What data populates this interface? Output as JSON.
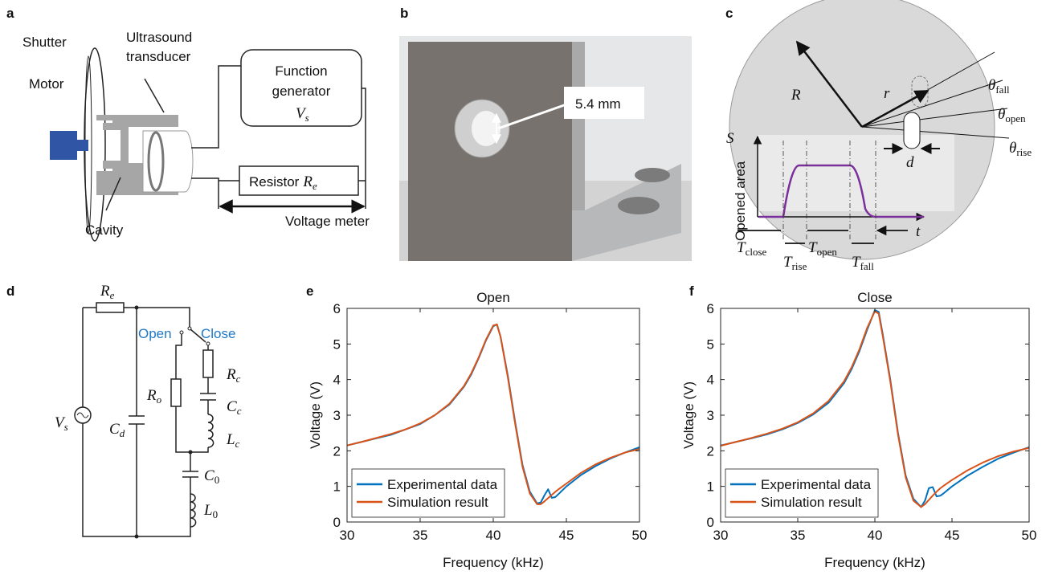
{
  "panels": {
    "a": {
      "label": "a",
      "shutter": "Shutter",
      "motor": "Motor",
      "transducer": [
        "Ultrasound",
        "transducer"
      ],
      "function_generator": [
        "Function",
        "generator"
      ],
      "vs": {
        "symbol": "V",
        "sub": "s"
      },
      "resistor": {
        "text": "Resistor",
        "symbol": "R",
        "sub": "e"
      },
      "voltage_meter": "Voltage meter",
      "cavity": "Cavity"
    },
    "b": {
      "label": "b",
      "dimension": "5.4 mm"
    },
    "c": {
      "label": "c",
      "R": "R",
      "r": "r",
      "d": "d",
      "theta_fall": {
        "symbol": "θ",
        "sub": "fall"
      },
      "theta_open": {
        "symbol": "θ",
        "sub": "open"
      },
      "theta_rise": {
        "symbol": "θ",
        "sub": "rise"
      },
      "s": "S",
      "y_label": "Opened area",
      "t": "t",
      "t_close": {
        "symbol": "T",
        "sub": "close"
      },
      "t_rise": {
        "symbol": "T",
        "sub": "rise"
      },
      "t_open": {
        "symbol": "T",
        "sub": "open"
      },
      "t_fall": {
        "symbol": "T",
        "sub": "fall"
      }
    },
    "d": {
      "label": "d",
      "re": {
        "symbol": "R",
        "sub": "e"
      },
      "open": "Open",
      "close": "Close",
      "vs": {
        "symbol": "V",
        "sub": "s"
      },
      "cd": {
        "symbol": "C",
        "sub": "d"
      },
      "ro": {
        "symbol": "R",
        "sub": "o"
      },
      "rc": {
        "symbol": "R",
        "sub": "c"
      },
      "cc": {
        "symbol": "C",
        "sub": "c"
      },
      "lc": {
        "symbol": "L",
        "sub": "c"
      },
      "c0": {
        "symbol": "C",
        "sub": "0"
      },
      "l0": {
        "symbol": "L",
        "sub": "0"
      }
    },
    "e": {
      "label": "e"
    },
    "f": {
      "label": "f"
    }
  },
  "chart_data": [
    {
      "type": "line",
      "title": "Open",
      "xlabel": "Frequency (kHz)",
      "ylabel": "Voltage (V)",
      "xlim": [
        30,
        50
      ],
      "xticks": [
        30,
        35,
        40,
        45,
        50
      ],
      "ylim": [
        0,
        6
      ],
      "yticks": [
        0,
        1,
        2,
        3,
        4,
        5,
        6
      ],
      "legend": "lower left",
      "x": [
        30,
        31,
        32,
        33,
        34,
        35,
        36,
        37,
        38,
        38.5,
        39,
        39.5,
        40,
        40.25,
        40.5,
        41,
        41.5,
        42,
        42.5,
        43,
        43.25,
        43.5,
        43.75,
        44,
        44.25,
        44.5,
        45,
        46,
        47,
        48,
        49,
        50
      ],
      "series": [
        {
          "name": "Experimental data",
          "color": "#0072bd",
          "values": [
            2.15,
            2.25,
            2.35,
            2.45,
            2.6,
            2.75,
            3.0,
            3.3,
            3.8,
            4.15,
            4.6,
            5.1,
            5.5,
            5.55,
            5.2,
            4.1,
            2.8,
            1.6,
            0.85,
            0.52,
            0.55,
            0.75,
            0.92,
            0.68,
            0.7,
            0.8,
            1.0,
            1.32,
            1.57,
            1.78,
            1.95,
            2.1
          ]
        },
        {
          "name": "Simulation result",
          "color": "#d95319",
          "values": [
            2.15,
            2.25,
            2.36,
            2.47,
            2.6,
            2.77,
            3.0,
            3.32,
            3.82,
            4.18,
            4.62,
            5.12,
            5.52,
            5.55,
            5.2,
            4.05,
            2.75,
            1.55,
            0.8,
            0.5,
            0.5,
            0.58,
            0.67,
            0.76,
            0.85,
            0.93,
            1.08,
            1.38,
            1.62,
            1.8,
            1.95,
            2.05
          ]
        }
      ]
    },
    {
      "type": "line",
      "title": "Close",
      "xlabel": "Frequency (kHz)",
      "ylabel": "Voltage (V)",
      "xlim": [
        30,
        50
      ],
      "xticks": [
        30,
        35,
        40,
        45,
        50
      ],
      "ylim": [
        0,
        6
      ],
      "yticks": [
        0,
        1,
        2,
        3,
        4,
        5,
        6
      ],
      "legend": "lower left",
      "x": [
        30,
        31,
        32,
        33,
        34,
        35,
        36,
        37,
        38,
        38.5,
        39,
        39.5,
        40,
        40.25,
        40.5,
        41,
        41.5,
        42,
        42.5,
        43,
        43.25,
        43.5,
        43.75,
        44,
        44.25,
        44.5,
        45,
        46,
        47,
        48,
        49,
        50
      ],
      "series": [
        {
          "name": "Experimental data",
          "color": "#0072bd",
          "values": [
            2.15,
            2.25,
            2.35,
            2.46,
            2.6,
            2.78,
            3.02,
            3.35,
            3.9,
            4.3,
            4.8,
            5.4,
            5.95,
            5.9,
            5.3,
            4.0,
            2.5,
            1.3,
            0.65,
            0.42,
            0.6,
            0.95,
            0.98,
            0.72,
            0.74,
            0.82,
            1.0,
            1.3,
            1.55,
            1.78,
            1.95,
            2.1
          ]
        },
        {
          "name": "Simulation result",
          "color": "#d95319",
          "values": [
            2.14,
            2.25,
            2.36,
            2.48,
            2.62,
            2.8,
            3.05,
            3.4,
            3.95,
            4.35,
            4.85,
            5.45,
            5.92,
            5.85,
            5.25,
            3.95,
            2.45,
            1.25,
            0.6,
            0.42,
            0.5,
            0.62,
            0.74,
            0.85,
            0.95,
            1.03,
            1.18,
            1.45,
            1.67,
            1.85,
            1.98,
            2.08
          ]
        }
      ]
    }
  ]
}
